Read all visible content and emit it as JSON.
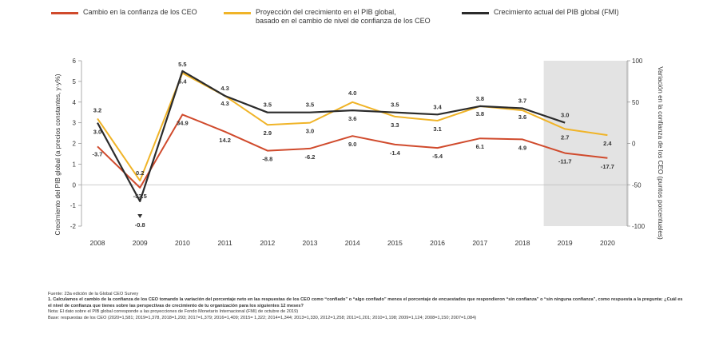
{
  "legend": [
    {
      "label_lines": [
        "Cambio en la confianza de los CEO"
      ],
      "color": "#d04a2c"
    },
    {
      "label_lines": [
        "Proyección del crecimiento en el PIB global,",
        "basado en el cambio de nivel de confianza de los CEO"
      ],
      "color": "#f0b428"
    },
    {
      "label_lines": [
        "Crecimiento actual del PIB global (FMI)"
      ],
      "color": "#2b2b2b"
    }
  ],
  "chart_data": {
    "type": "line",
    "x": [
      "2008",
      "2009",
      "2010",
      "2011",
      "2012",
      "2013",
      "2014",
      "2015",
      "2016",
      "2017",
      "2018",
      "2019",
      "2020"
    ],
    "ylabel_left": "Crecimiento del PIB global (a precios constantes, y-y%)",
    "ylabel_right": "Variación en la confianza de los CEO (puntos porcentuales)",
    "ylim_left": [
      -2,
      6
    ],
    "ylim_right": [
      -100,
      100
    ],
    "yticks_left": [
      "-2",
      "-1",
      "0",
      "1",
      "2",
      "3",
      "4",
      "5",
      "6"
    ],
    "yticks_right": [
      "-100",
      "-50",
      "0",
      "50",
      "100"
    ],
    "shaded_x_range": [
      "2019",
      "2020"
    ],
    "series": [
      {
        "key": "ceo",
        "axis": "right",
        "color": "#d04a2c",
        "values": [
          -3.7,
          -53.5,
          34.9,
          14.2,
          -8.8,
          -6.2,
          9.0,
          -1.4,
          -5.4,
          6.1,
          4.9,
          -11.7,
          -17.7
        ],
        "labels": [
          "-3.7",
          "-53.5",
          "34.9",
          "14.2",
          "-8.8",
          "-6.2",
          "9.0",
          "-1.4",
          "-5.4",
          "6.1",
          "4.9",
          "-11.7",
          "-17.7"
        ]
      },
      {
        "key": "projection",
        "axis": "left",
        "color": "#f0b428",
        "values": [
          3.2,
          0.2,
          5.4,
          4.3,
          2.9,
          3.0,
          4.0,
          3.3,
          3.1,
          3.8,
          3.6,
          2.7,
          2.4
        ],
        "labels": [
          "3.2",
          "0.2",
          "5.4",
          "4.3",
          "2.9",
          "3.0",
          "4.0",
          "3.3",
          "3.1",
          "3.8",
          "3.6",
          "2.7",
          "2.4"
        ]
      },
      {
        "key": "imf",
        "axis": "left",
        "color": "#2b2b2b",
        "values": [
          3.0,
          -0.8,
          5.5,
          4.3,
          3.5,
          3.5,
          3.6,
          3.5,
          3.4,
          3.8,
          3.7,
          3.0,
          null
        ],
        "labels": [
          "3.0",
          "-0.8",
          "5.5",
          "4.3",
          "3.5",
          "3.5",
          "3.6",
          "3.5",
          "3.4",
          "3.8",
          "3.7",
          "3.0",
          ""
        ]
      }
    ]
  },
  "notes": {
    "source": "Fuente: 23a edición de la Global CEO Survey",
    "note1": "1. Calculamos el cambio de la confianza de los CEO tomando la variación del porcentaje neto en las respuestas de los CEO como “confiado” o “algo confiado” menos el porcentaje de encuestados que respondieron “sin confianza” o “sin ninguna confianza”, como respuesta a la pregunta: ¿Cuál es el nivel de confianza que tienes sobre las perspectivas de crecimiento de tu organización para los siguientes 12 meses?",
    "note2": "Nota: El dato sobre el PIB global corresponde a las proyecciones de Fondo Monetario Internacional (FMI) de octubre de 2019)",
    "base": "Base: respuestas de los CEO (2020=1,581; 2019=1,378, 2018=1,293; 2017=1,379; 2016=1,409; 2015= 1,322; 2014=1,344; 2013=1,330, 2012=1,258; 2011=1,201; 2010=1,198; 2009=1,124; 2008=1,150; 2007=1,084)"
  }
}
